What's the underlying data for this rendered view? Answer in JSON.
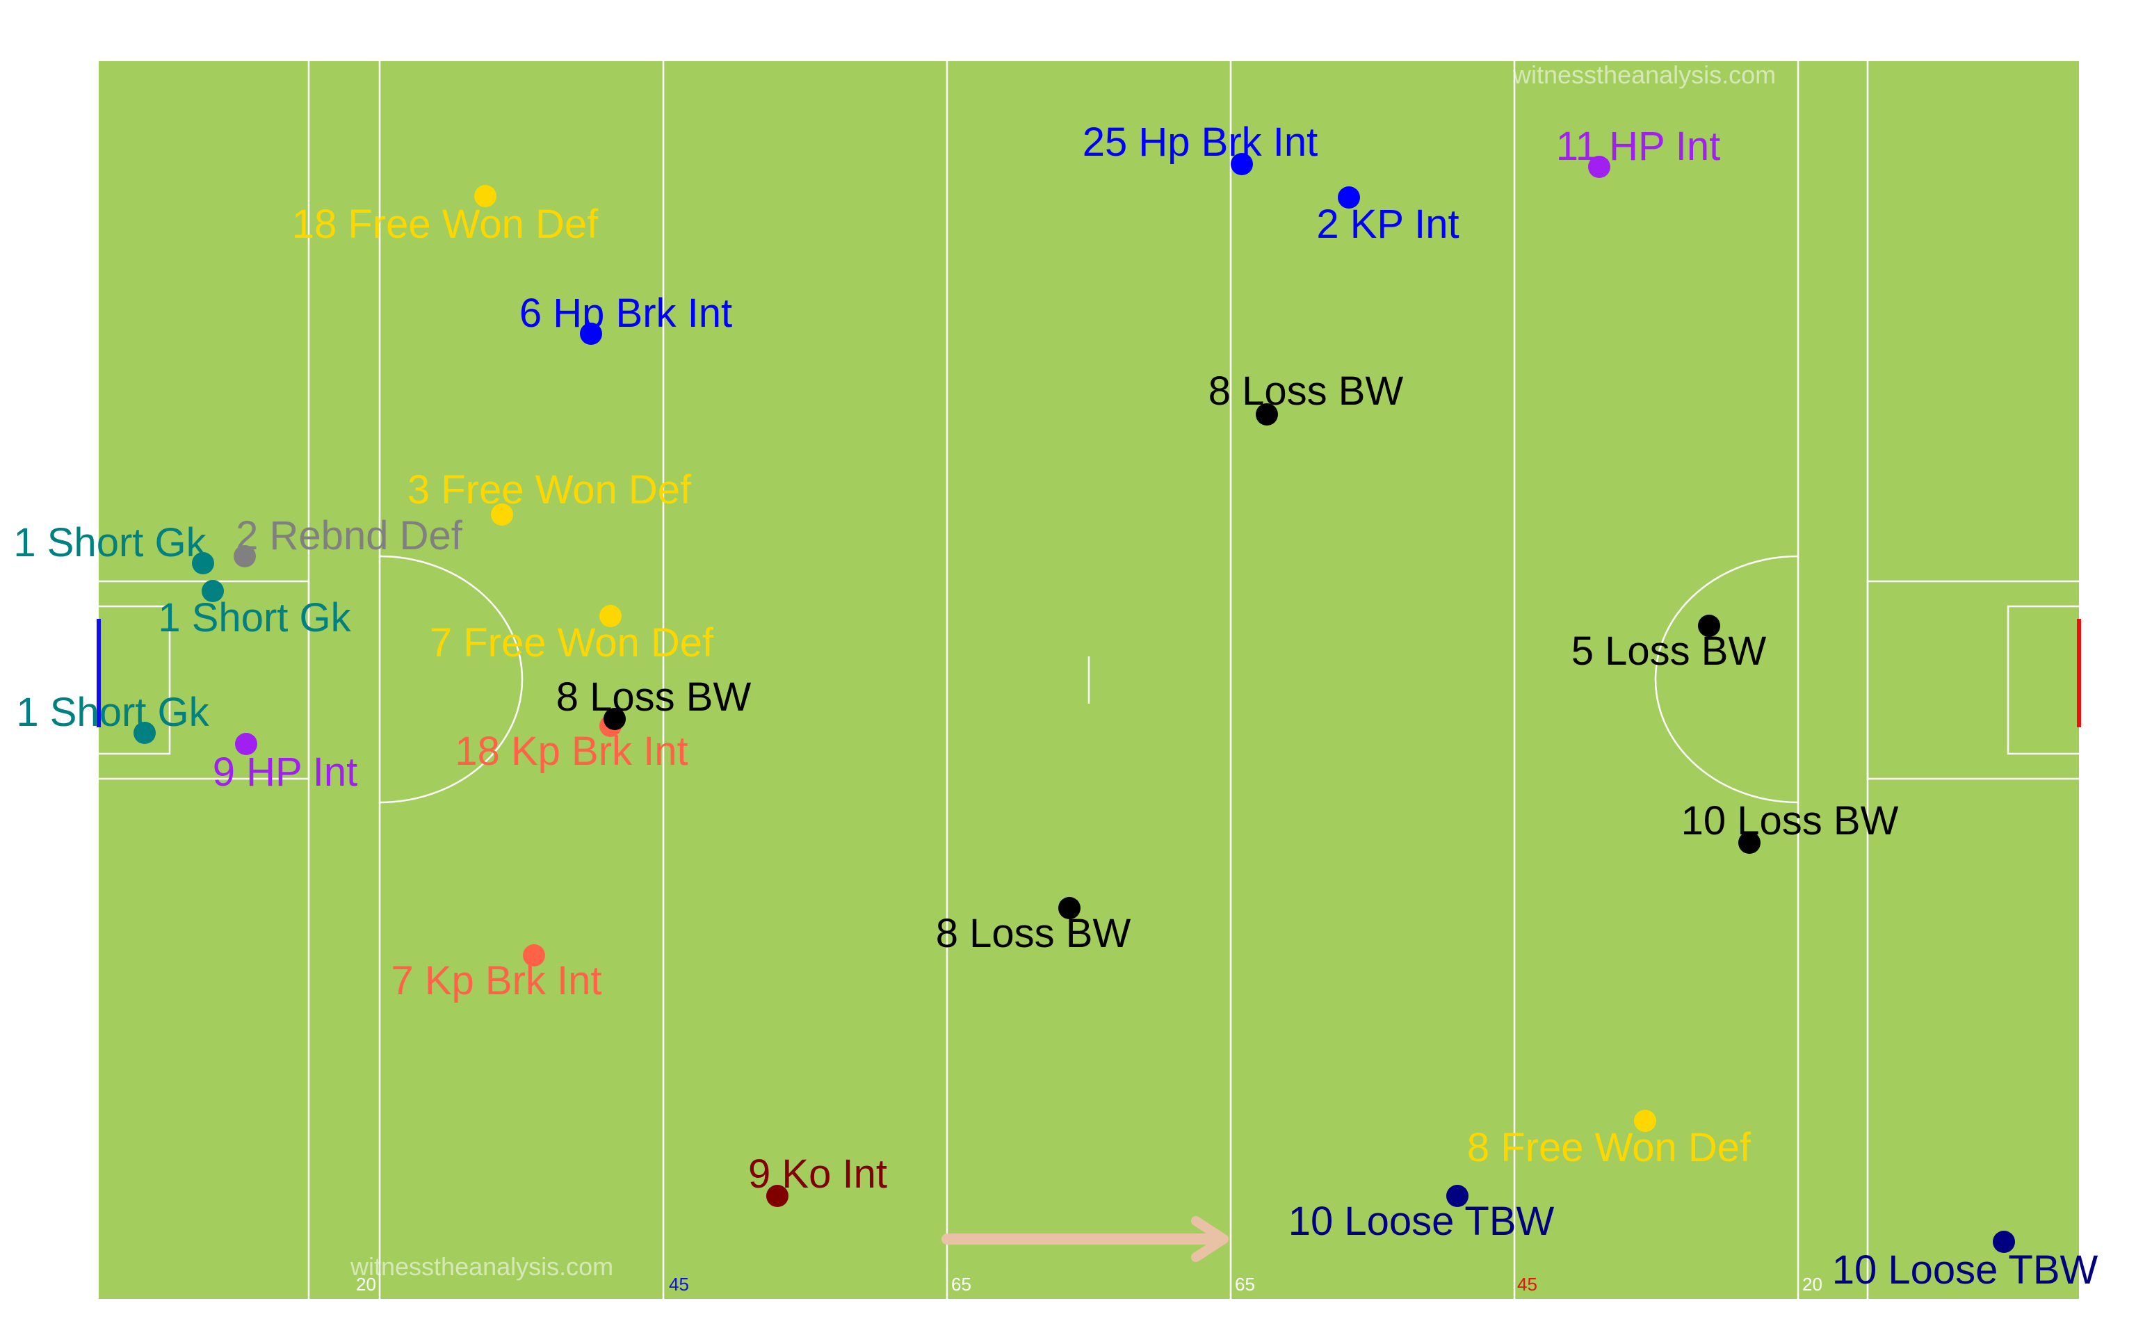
{
  "watermarks": {
    "top": "witnesstheanalysis.com",
    "bottom": "witnesstheanalysis.com"
  },
  "yard_markers": [
    {
      "text": "20",
      "color": "#ffffff"
    },
    {
      "text": "45",
      "color": "#1010ee"
    },
    {
      "text": "65",
      "color": "#ffffff"
    },
    {
      "text": "65",
      "color": "#ffffff"
    },
    {
      "text": "45",
      "color": "#ee1010"
    },
    {
      "text": "20",
      "color": "#ffffff"
    }
  ],
  "colors": {
    "pitch": "#a3cd5d",
    "line": "#ffffff",
    "left_goal": "#1010ee",
    "right_goal": "#ee1010",
    "arrow": "#e9c2a6"
  },
  "direction_arrow": {
    "icon": "right-arrow-icon"
  },
  "events": [
    {
      "label": "25 Hp Brk Int",
      "color": "#0000ff"
    },
    {
      "label": "2 KP Int",
      "color": "#0000ff"
    },
    {
      "label": "11 HP Int",
      "color": "#a020f0"
    },
    {
      "label": "18 Free Won Def",
      "color": "#ffd700"
    },
    {
      "label": "6 Hp Brk Int",
      "color": "#0000ff"
    },
    {
      "label": "8 Loss BW",
      "color": "#000000"
    },
    {
      "label": "3 Free Won Def",
      "color": "#ffd700"
    },
    {
      "label": "2 Rebnd Def",
      "color": "#808080"
    },
    {
      "label": "1 Short Gk",
      "color": "#008080"
    },
    {
      "label": "1 Short Gk",
      "color": "#008080"
    },
    {
      "label": "7 Free Won Def",
      "color": "#ffd700"
    },
    {
      "label": "5 Loss BW",
      "color": "#000000"
    },
    {
      "label": "8 Loss BW",
      "color": "#000000"
    },
    {
      "label": "1 Short Gk",
      "color": "#008080"
    },
    {
      "label": "18 Kp Brk Int",
      "color": "#ff6347"
    },
    {
      "label": "9 HP Int",
      "color": "#a020f0"
    },
    {
      "label": "10 Loss BW",
      "color": "#000000"
    },
    {
      "label": "8 Loss BW",
      "color": "#000000"
    },
    {
      "label": "7 Kp Brk Int",
      "color": "#ff6347"
    },
    {
      "label": "8 Free Won Def",
      "color": "#ffd700"
    },
    {
      "label": "9 Ko Int",
      "color": "#800000"
    },
    {
      "label": "10 Loose TBW",
      "color": "#000080"
    },
    {
      "label": "10 Loose TBW",
      "color": "#000080"
    }
  ]
}
